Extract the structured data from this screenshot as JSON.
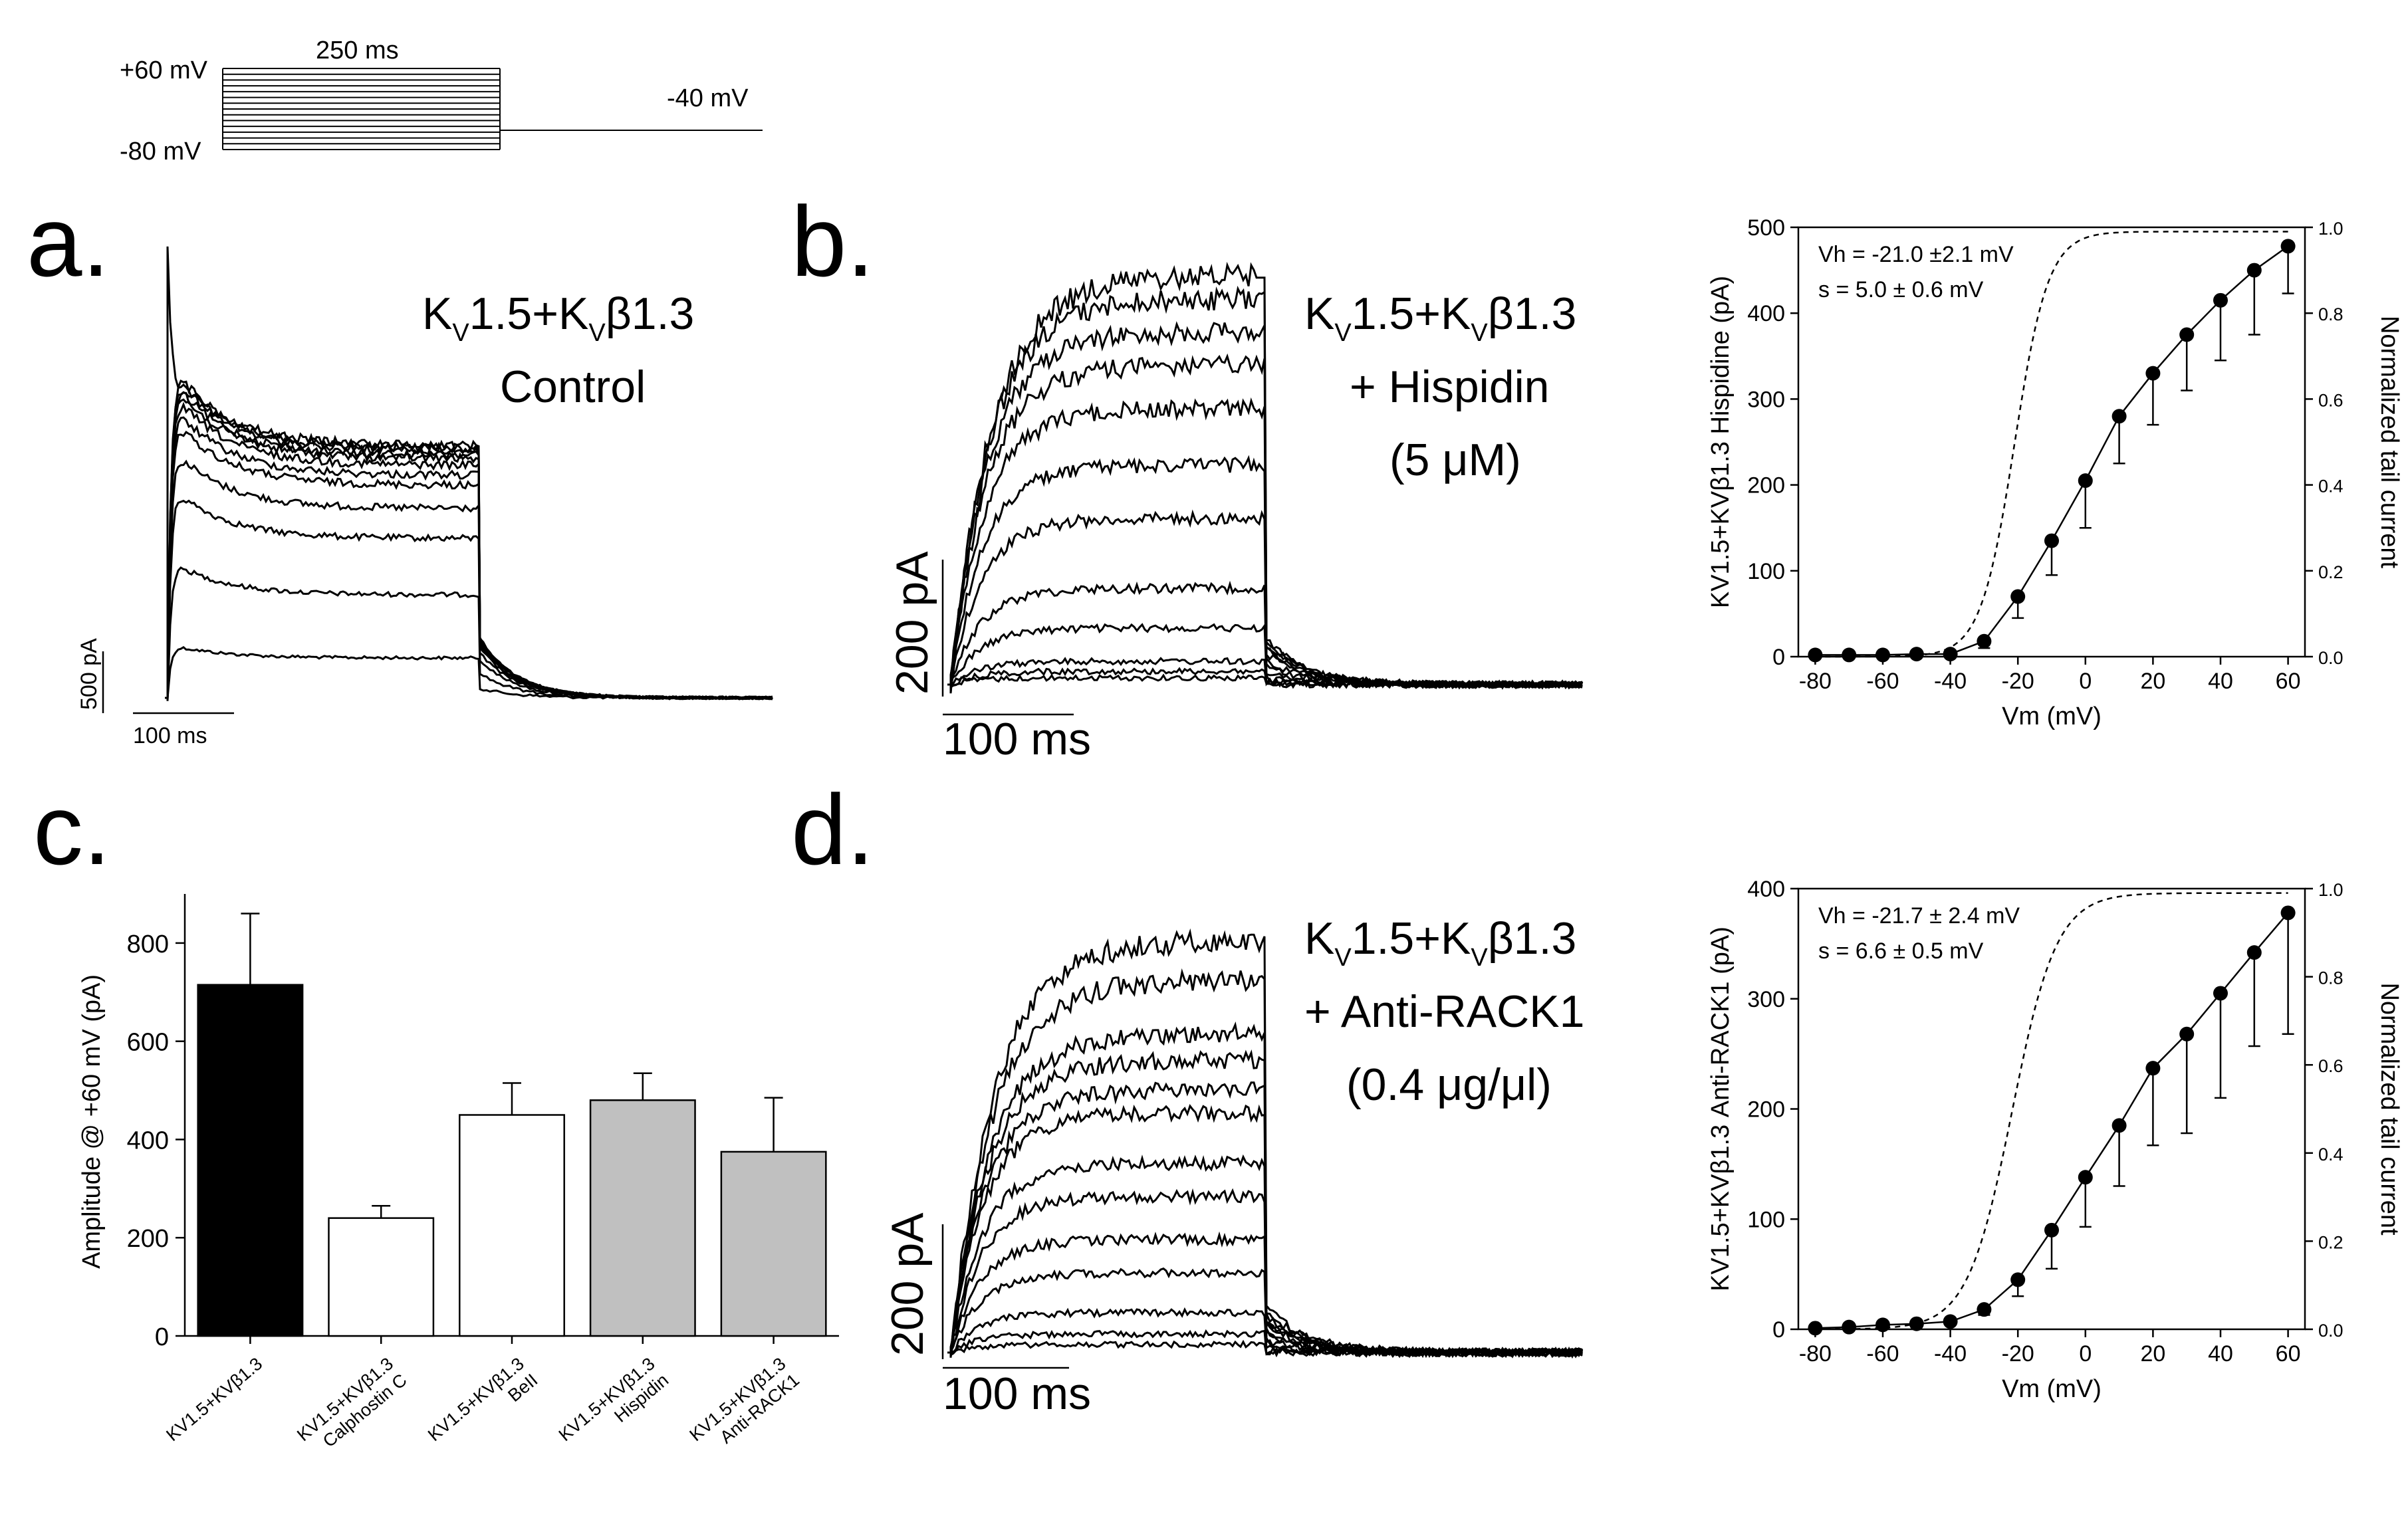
{
  "protocol": {
    "v_top": "+60 mV",
    "v_bottom": "-80 mV",
    "duration": "250 ms",
    "v_hold": "-40 mV"
  },
  "panels": {
    "a": {
      "letter": "a.",
      "title_line1_main": "K",
      "title_line1": "V1.5+KVβ1.3",
      "title_line2": "Control",
      "scale_y": "500 pA",
      "scale_x": "100 ms"
    },
    "b": {
      "letter": "b.",
      "title_line2": "+ Hispidin",
      "title_line3": "(5 μM)",
      "scale_y": "200 pA",
      "scale_x": "100 ms"
    },
    "c": {
      "letter": "c."
    },
    "d": {
      "letter": "d.",
      "title_line2": "+ Anti-RACK1",
      "title_line3": "(0.4 μg/μl)",
      "scale_y": "200 pA",
      "scale_x": "100 ms"
    }
  },
  "construct": {
    "k": "K",
    "v": "V",
    "mid": "1.5+K",
    "beta": "β1.3"
  },
  "chart_data": [
    {
      "id": "b-iv",
      "type": "line",
      "annotation_vh": "Vh = -21.0 ±2.1 mV",
      "annotation_s": "s = 5.0 ± 0.6 mV",
      "xlabel": "Vm (mV)",
      "ylabel_left": "KV1.5+KVβ1.3 Hispidine (pA)",
      "ylabel_right": "Normalized tail current",
      "xlim": [
        -85,
        65
      ],
      "ylim_left": [
        0,
        500
      ],
      "ylim_right": [
        0,
        1
      ],
      "x_ticks": [
        -80,
        -60,
        -40,
        -20,
        0,
        20,
        40,
        60
      ],
      "y_ticks_left": [
        0,
        100,
        200,
        300,
        400,
        500
      ],
      "y_ticks_right": [
        "0.0",
        "0.2",
        "0.4",
        "0.6",
        "0.8",
        "1.0"
      ],
      "series": [
        {
          "name": "Current (pA)",
          "x": [
            -80,
            -70,
            -60,
            -50,
            -40,
            -30,
            -20,
            -10,
            0,
            10,
            20,
            30,
            40,
            50,
            60
          ],
          "values": [
            2,
            2,
            2,
            3,
            3,
            18,
            70,
            135,
            205,
            280,
            330,
            375,
            415,
            450,
            478
          ],
          "errors": [
            0,
            0,
            0,
            0,
            0,
            8,
            25,
            40,
            55,
            55,
            60,
            65,
            70,
            75,
            55
          ]
        },
        {
          "name": "Normalized tail current (Boltzmann fit)",
          "vh": -21.0,
          "slope": 5.0,
          "axis": "right"
        }
      ]
    },
    {
      "id": "c-bar",
      "type": "bar",
      "ylabel": "Amplitude @ +60 mV (pA)",
      "ylim": [
        0,
        900
      ],
      "y_ticks": [
        0,
        200,
        400,
        600,
        800
      ],
      "categories": [
        "KV1.5+KVβ1.3",
        "KV1.5+KVβ1.3 Calphostin C",
        "KV1.5+KVβ1.3 BeII",
        "KV1.5+KVβ1.3 Hispidin",
        "KV1.5+KVβ1.3 Anti-RACK1"
      ],
      "category_line2": [
        "",
        "Calphostin C",
        "BeII",
        "Hispidin",
        "Anti-RACK1"
      ],
      "values": [
        715,
        240,
        450,
        480,
        375
      ],
      "errors": [
        145,
        25,
        65,
        55,
        110
      ],
      "colors": [
        "#000000",
        "#ffffff",
        "#ffffff",
        "#c0c0c0",
        "#c0c0c0"
      ]
    },
    {
      "id": "d-iv",
      "type": "line",
      "annotation_vh": "Vh = -21.7 ± 2.4 mV",
      "annotation_s": "s = 6.6 ± 0.5 mV",
      "xlabel": "Vm (mV)",
      "ylabel_left": "KV1.5+KVβ1.3 Anti-RACK1 (pA)",
      "ylabel_right": "Normalized tail current",
      "xlim": [
        -85,
        65
      ],
      "ylim_left": [
        0,
        400
      ],
      "ylim_right": [
        0,
        1
      ],
      "x_ticks": [
        -80,
        -60,
        -40,
        -20,
        0,
        20,
        40,
        60
      ],
      "y_ticks_left": [
        0,
        100,
        200,
        300,
        400
      ],
      "y_ticks_right": [
        "0.0",
        "0.2",
        "0.4",
        "0.6",
        "0.8",
        "1.0"
      ],
      "series": [
        {
          "name": "Current (pA)",
          "x": [
            -80,
            -70,
            -60,
            -50,
            -40,
            -30,
            -20,
            -10,
            0,
            10,
            20,
            30,
            40,
            50,
            60
          ],
          "values": [
            1,
            2,
            4,
            5,
            7,
            18,
            45,
            90,
            138,
            185,
            237,
            268,
            305,
            342,
            378
          ],
          "errors": [
            0,
            0,
            0,
            0,
            0,
            5,
            15,
            35,
            45,
            55,
            70,
            90,
            95,
            85,
            110
          ]
        },
        {
          "name": "Normalized tail current (Boltzmann fit)",
          "vh": -21.7,
          "slope": 6.6,
          "axis": "right"
        }
      ]
    }
  ]
}
